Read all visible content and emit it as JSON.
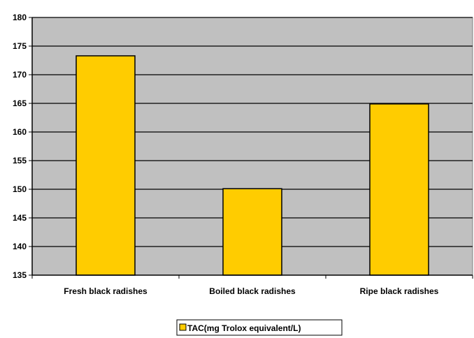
{
  "chart_data": {
    "type": "bar",
    "categories": [
      "Fresh black radishes",
      "Boiled black radishes",
      "Ripe black radishes"
    ],
    "series": [
      {
        "name": "TAC(mg Trolox equivalent/L)",
        "values": [
          173.3,
          150.1,
          164.9
        ],
        "color": "#FFCC00"
      }
    ],
    "title": "",
    "xlabel": "",
    "ylabel": "",
    "ylim": [
      135,
      180
    ],
    "yticks": [
      135,
      140,
      145,
      150,
      155,
      160,
      165,
      170,
      175,
      180
    ],
    "grid": true,
    "legend_position": "bottom",
    "plot_background": "#C0C0C0",
    "bar_edge_color": "#000000"
  }
}
